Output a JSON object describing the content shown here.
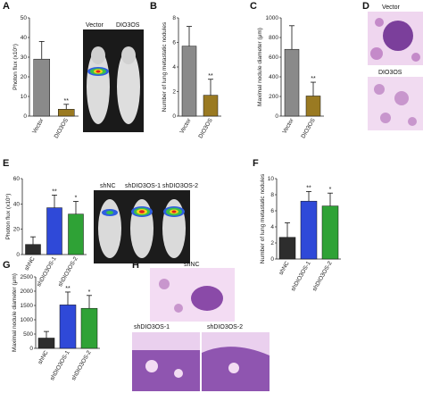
{
  "panels": {
    "A": {
      "letter": "A",
      "ylabel": "Photon flux (x10⁵)"
    },
    "B": {
      "letter": "B"
    },
    "C": {
      "letter": "C"
    },
    "D": {
      "letter": "D",
      "label_top": "Vector",
      "label_bottom": "DIO3OS"
    },
    "E": {
      "letter": "E",
      "ylabel": "Photon flux (x10⁵)",
      "img_labels": [
        "shNC",
        "shDIO3OS-1",
        "shDIO3OS-2"
      ]
    },
    "F": {
      "letter": "F"
    },
    "G": {
      "letter": "G"
    },
    "H": {
      "letter": "H",
      "labels": [
        "shNC",
        "shDIO3OS-1",
        "shDIO3OS-2"
      ]
    }
  },
  "image_labels_A": {
    "left": "Vector",
    "right": "DIO3OS"
  },
  "colors": {
    "vector_bar": "#8a8a8a",
    "dio3os_bar": "#9a7a22",
    "shnc_bar": "#2d2d2d",
    "sh1_bar": "#2f49d8",
    "sh2_bar": "#2fa236",
    "tissue": "#b97bbf",
    "tissue_dark": "#6e3c8f"
  },
  "chart_data": [
    {
      "id": "A",
      "type": "bar",
      "ylabel": "Photon flux (x10⁵)",
      "ylim": [
        0,
        50
      ],
      "yticks": [
        0,
        10,
        20,
        30,
        40,
        50
      ],
      "categories": [
        "Vector",
        "DIO3OS"
      ],
      "values": [
        29,
        3.5
      ],
      "errors": [
        9,
        2.5
      ],
      "sig": [
        "",
        "**"
      ],
      "colors": [
        "#8a8a8a",
        "#9a7a22"
      ]
    },
    {
      "id": "B",
      "type": "bar",
      "ylabel": "Number of lung metastatic nodules",
      "ylim": [
        0,
        8
      ],
      "yticks": [
        0,
        2,
        4,
        6,
        8
      ],
      "categories": [
        "Vector",
        "DIO3OS"
      ],
      "values": [
        5.7,
        1.7
      ],
      "errors": [
        1.6,
        1.3
      ],
      "sig": [
        "",
        "**"
      ],
      "colors": [
        "#8a8a8a",
        "#9a7a22"
      ]
    },
    {
      "id": "C",
      "type": "bar",
      "ylabel": "Maximal nodule diameter (μm)",
      "ylim": [
        0,
        1000
      ],
      "yticks": [
        0,
        200,
        400,
        600,
        800,
        1000
      ],
      "categories": [
        "Vector",
        "DIO3OS"
      ],
      "values": [
        680,
        205
      ],
      "errors": [
        240,
        140
      ],
      "sig": [
        "",
        "**"
      ],
      "colors": [
        "#8a8a8a",
        "#9a7a22"
      ]
    },
    {
      "id": "E",
      "type": "bar",
      "ylabel": "Photon flux (x10⁵)",
      "ylim": [
        0,
        60
      ],
      "yticks": [
        0,
        20,
        40,
        60
      ],
      "categories": [
        "shNC",
        "shDIO3OS-1",
        "shDIO3OS-2"
      ],
      "values": [
        8,
        37,
        32
      ],
      "errors": [
        6,
        10,
        10
      ],
      "sig": [
        "",
        "**",
        "*"
      ],
      "colors": [
        "#2d2d2d",
        "#2f49d8",
        "#2fa236"
      ]
    },
    {
      "id": "F",
      "type": "bar",
      "ylabel": "Number of lung metastatic nodules",
      "ylim": [
        0,
        10
      ],
      "yticks": [
        0,
        2,
        4,
        6,
        8,
        10
      ],
      "categories": [
        "shNC",
        "shDIO3OS-1",
        "shDIO3OS-2"
      ],
      "values": [
        2.7,
        7.2,
        6.6
      ],
      "errors": [
        1.8,
        1.2,
        1.6
      ],
      "sig": [
        "",
        "**",
        "*"
      ],
      "colors": [
        "#2d2d2d",
        "#2f49d8",
        "#2fa236"
      ]
    },
    {
      "id": "G",
      "type": "bar",
      "ylabel": "Maximal nodule diameter (μm)",
      "ylim": [
        0,
        2500
      ],
      "yticks": [
        0,
        500,
        1000,
        1500,
        2000,
        2500
      ],
      "categories": [
        "shNC",
        "shDIO3OS-1",
        "shDIO3OS-2"
      ],
      "values": [
        360,
        1520,
        1400
      ],
      "errors": [
        230,
        450,
        450
      ],
      "sig": [
        "",
        "**",
        "*"
      ],
      "colors": [
        "#2d2d2d",
        "#2f49d8",
        "#2fa236"
      ]
    }
  ]
}
